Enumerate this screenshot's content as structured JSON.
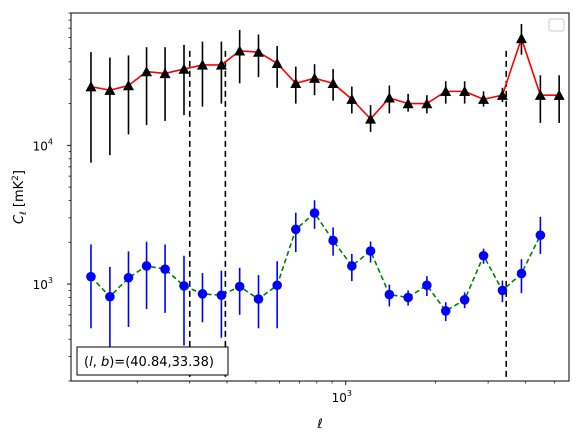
{
  "chart_data": {
    "type": "scatter",
    "xlabel": "ℓ",
    "ylabel": "C_ℓ [mK²]",
    "x_scale": "log",
    "y_scale": "log",
    "xlim": [
      120,
      5600
    ],
    "ylim": [
      200,
      90000
    ],
    "x_ticks": [
      {
        "value": 1000,
        "label": "10",
        "sup": "3"
      }
    ],
    "y_ticks": [
      {
        "value": 1000,
        "label": "10",
        "sup": "3"
      },
      {
        "value": 10000,
        "label": "10",
        "sup": "4"
      }
    ],
    "annotation": "(l, b)=(40.84,33.38)",
    "annotation_parts": {
      "prefix": "(",
      "l": "l",
      "sep": ", ",
      "b": "b",
      "suffix": ")=(40.84,33.38)"
    },
    "vlines_x": [
      300,
      395,
      3450
    ],
    "legend": {
      "placement": "top-right",
      "entries": []
    },
    "series": [
      {
        "marker": "triangle",
        "marker_color": "#000000",
        "line_color": "#ff0000",
        "line_style": "solid",
        "x": [
          140,
          162,
          187,
          215,
          248,
          287,
          331,
          383,
          441,
          510,
          589,
          680,
          786,
          907,
          1048,
          1211,
          1400,
          1618,
          1870,
          2163,
          2503,
          2896,
          3350,
          3880,
          4490,
          5190
        ],
        "y": [
          26500,
          25000,
          27000,
          34000,
          33000,
          35500,
          38000,
          38000,
          48000,
          47000,
          39000,
          28000,
          30500,
          28000,
          21500,
          15500,
          22000,
          20000,
          20000,
          24500,
          24500,
          21500,
          23000,
          59000,
          23000,
          23000
        ],
        "err_low": [
          7500,
          8500,
          12000,
          14000,
          15000,
          16500,
          19000,
          20000,
          28000,
          31000,
          26000,
          20000,
          23000,
          21000,
          17000,
          12500,
          17000,
          17500,
          17000,
          20000,
          20000,
          19000,
          20500,
          45000,
          14500,
          14500
        ],
        "err_high": [
          47000,
          43000,
          44500,
          51000,
          51000,
          53000,
          56000,
          56000,
          68000,
          63000,
          52000,
          37000,
          38500,
          35500,
          26500,
          19500,
          27000,
          23500,
          23000,
          29000,
          29000,
          24500,
          26000,
          75000,
          32000,
          32000
        ]
      },
      {
        "marker": "circle",
        "marker_color": "#0000ff",
        "line_color": "#008000",
        "line_style": "dashed",
        "x": [
          140,
          162,
          187,
          215,
          248,
          287,
          331,
          383,
          441,
          510,
          589,
          680,
          786,
          907,
          1048,
          1211,
          1400,
          1618,
          1870,
          2163,
          2503,
          2896,
          3350,
          3880,
          4490
        ],
        "y": [
          1130,
          810,
          1110,
          1350,
          1280,
          970,
          850,
          830,
          960,
          780,
          980,
          2480,
          3250,
          2060,
          1350,
          1730,
          840,
          800,
          980,
          640,
          770,
          1600,
          900,
          1190,
          2250
        ],
        "err_low": [
          480,
          260,
          490,
          660,
          620,
          360,
          530,
          410,
          600,
          480,
          480,
          1700,
          2500,
          1600,
          1050,
          1430,
          690,
          700,
          820,
          540,
          670,
          1400,
          740,
          860,
          1650
        ],
        "err_high": [
          1930,
          1330,
          1720,
          2020,
          1930,
          1600,
          1200,
          1250,
          1310,
          1160,
          1460,
          3270,
          4020,
          2560,
          1650,
          2030,
          990,
          900,
          1140,
          740,
          870,
          1800,
          1060,
          1510,
          3050
        ]
      }
    ]
  }
}
